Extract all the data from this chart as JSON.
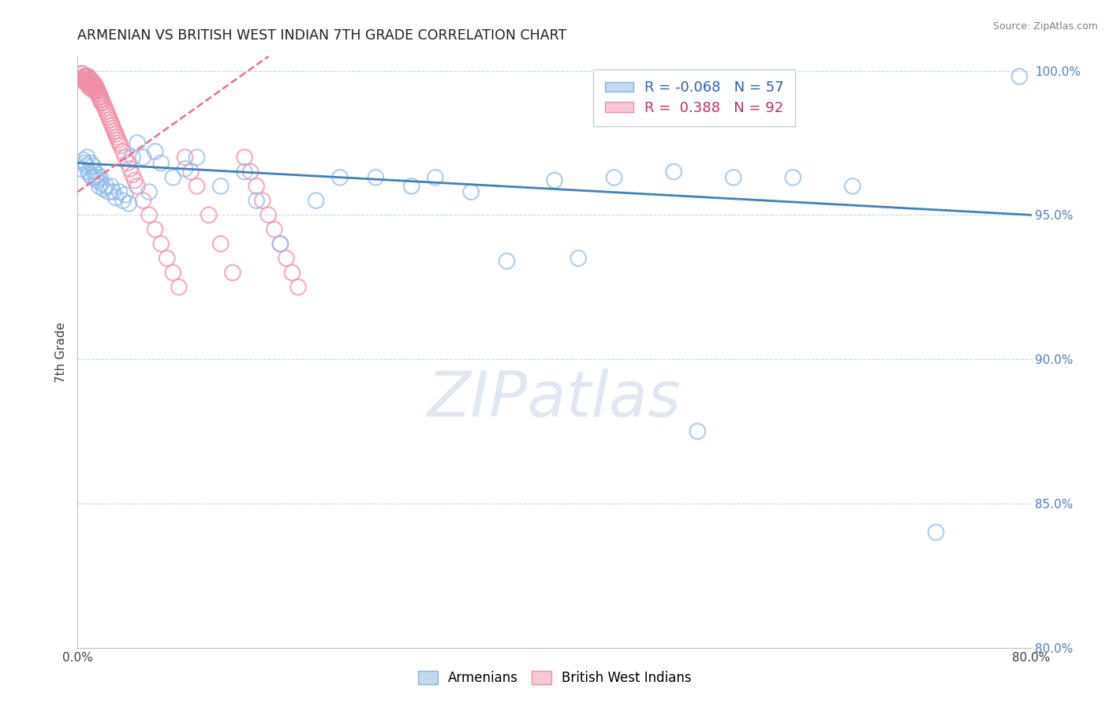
{
  "title": "ARMENIAN VS BRITISH WEST INDIAN 7TH GRADE CORRELATION CHART",
  "source_text": "Source: ZipAtlas.com",
  "ylabel": "7th Grade",
  "xlim": [
    0.0,
    0.8
  ],
  "ylim": [
    0.8,
    1.005
  ],
  "yticks": [
    0.8,
    0.85,
    0.9,
    0.95,
    1.0
  ],
  "ytick_labels": [
    "80.0%",
    "85.0%",
    "90.0%",
    "95.0%",
    "100.0%"
  ],
  "xticks": [
    0.0,
    0.1,
    0.2,
    0.3,
    0.4,
    0.5,
    0.6,
    0.7,
    0.8
  ],
  "xtick_labels": [
    "0.0%",
    "",
    "",
    "",
    "",
    "",
    "",
    "",
    "80.0%"
  ],
  "r_armenian": -0.068,
  "r_bwi": 0.388,
  "n_armenian": 57,
  "n_bwi": 92,
  "color_armenian": "#90bce8",
  "color_bwi": "#f090a8",
  "color_armenian_line": "#4080c0",
  "color_bwi_line": "#e87090",
  "watermark": "ZIPatlas",
  "title_color": "#202020",
  "title_fontsize": 12.5,
  "arm_trend_x0": 0.0,
  "arm_trend_y0": 0.968,
  "arm_trend_x1": 0.8,
  "arm_trend_y1": 0.95,
  "bwi_trend_x0": 0.0,
  "bwi_trend_y0": 0.958,
  "bwi_trend_x1": 0.16,
  "bwi_trend_y1": 1.005,
  "grid_color": "#c8d8e8",
  "tick_color": "#5080c0",
  "arm_scatter_x": [
    0.003,
    0.005,
    0.006,
    0.007,
    0.008,
    0.009,
    0.01,
    0.011,
    0.012,
    0.013,
    0.014,
    0.015,
    0.016,
    0.017,
    0.018,
    0.019,
    0.02,
    0.022,
    0.024,
    0.026,
    0.028,
    0.03,
    0.032,
    0.035,
    0.038,
    0.04,
    0.043,
    0.046,
    0.05,
    0.055,
    0.06,
    0.065,
    0.07,
    0.08,
    0.09,
    0.1,
    0.12,
    0.14,
    0.15,
    0.17,
    0.2,
    0.22,
    0.25,
    0.28,
    0.3,
    0.33,
    0.36,
    0.4,
    0.42,
    0.45,
    0.5,
    0.52,
    0.55,
    0.6,
    0.65,
    0.72,
    0.79
  ],
  "arm_scatter_y": [
    0.966,
    0.969,
    0.968,
    0.967,
    0.97,
    0.965,
    0.964,
    0.968,
    0.963,
    0.967,
    0.965,
    0.963,
    0.962,
    0.964,
    0.96,
    0.963,
    0.961,
    0.959,
    0.96,
    0.958,
    0.96,
    0.958,
    0.956,
    0.958,
    0.955,
    0.957,
    0.954,
    0.97,
    0.975,
    0.97,
    0.958,
    0.972,
    0.968,
    0.963,
    0.966,
    0.97,
    0.96,
    0.965,
    0.955,
    0.94,
    0.955,
    0.963,
    0.963,
    0.96,
    0.963,
    0.958,
    0.934,
    0.962,
    0.935,
    0.963,
    0.965,
    0.875,
    0.963,
    0.963,
    0.96,
    0.84,
    0.998
  ],
  "bwi_scatter_x": [
    0.003,
    0.004,
    0.005,
    0.005,
    0.006,
    0.006,
    0.006,
    0.007,
    0.007,
    0.007,
    0.008,
    0.008,
    0.008,
    0.009,
    0.009,
    0.009,
    0.009,
    0.01,
    0.01,
    0.01,
    0.01,
    0.011,
    0.011,
    0.011,
    0.012,
    0.012,
    0.012,
    0.013,
    0.013,
    0.013,
    0.014,
    0.014,
    0.014,
    0.015,
    0.015,
    0.015,
    0.016,
    0.016,
    0.017,
    0.017,
    0.018,
    0.018,
    0.019,
    0.019,
    0.02,
    0.02,
    0.021,
    0.022,
    0.023,
    0.024,
    0.025,
    0.026,
    0.027,
    0.028,
    0.029,
    0.03,
    0.031,
    0.032,
    0.033,
    0.034,
    0.035,
    0.036,
    0.038,
    0.04,
    0.042,
    0.044,
    0.046,
    0.048,
    0.05,
    0.055,
    0.06,
    0.065,
    0.07,
    0.075,
    0.08,
    0.085,
    0.09,
    0.095,
    0.1,
    0.11,
    0.12,
    0.13,
    0.14,
    0.145,
    0.15,
    0.155,
    0.16,
    0.165,
    0.17,
    0.175,
    0.18,
    0.185
  ],
  "bwi_scatter_y": [
    0.999,
    0.999,
    0.998,
    0.997,
    0.998,
    0.997,
    0.996,
    0.998,
    0.997,
    0.996,
    0.998,
    0.997,
    0.996,
    0.998,
    0.997,
    0.996,
    0.995,
    0.997,
    0.996,
    0.995,
    0.994,
    0.997,
    0.996,
    0.995,
    0.996,
    0.995,
    0.994,
    0.996,
    0.995,
    0.994,
    0.995,
    0.994,
    0.993,
    0.995,
    0.994,
    0.993,
    0.994,
    0.993,
    0.993,
    0.992,
    0.992,
    0.991,
    0.991,
    0.99,
    0.99,
    0.989,
    0.989,
    0.988,
    0.987,
    0.986,
    0.985,
    0.984,
    0.983,
    0.982,
    0.981,
    0.98,
    0.979,
    0.978,
    0.977,
    0.976,
    0.975,
    0.974,
    0.972,
    0.97,
    0.968,
    0.966,
    0.964,
    0.962,
    0.96,
    0.955,
    0.95,
    0.945,
    0.94,
    0.935,
    0.93,
    0.925,
    0.97,
    0.965,
    0.96,
    0.95,
    0.94,
    0.93,
    0.97,
    0.965,
    0.96,
    0.955,
    0.95,
    0.945,
    0.94,
    0.935,
    0.93,
    0.925
  ]
}
